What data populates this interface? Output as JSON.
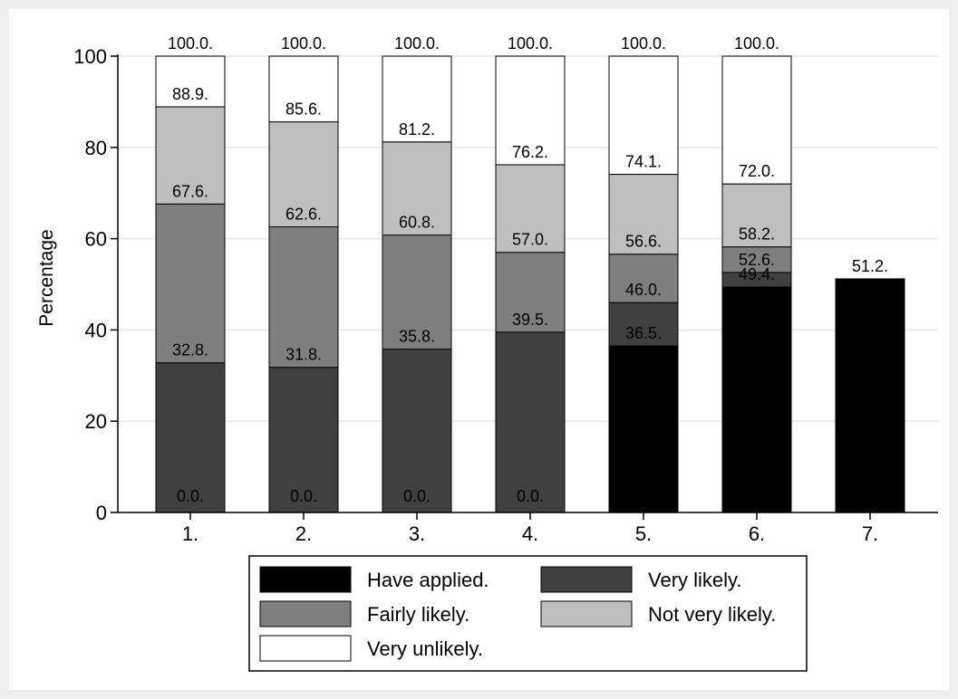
{
  "chart_data": {
    "type": "bar",
    "stacked": true,
    "cumulative_labels": true,
    "categories": [
      "1.",
      "2.",
      "3.",
      "4.",
      "5.",
      "6.",
      "7."
    ],
    "ylabel": "Percentage",
    "ylim": [
      0,
      100
    ],
    "yticks": [
      0,
      20,
      40,
      60,
      80,
      100
    ],
    "grid": true,
    "legend_position": "bottom",
    "series": [
      {
        "name": "Have applied",
        "color": "#000000",
        "values": [
          0.0,
          0.0,
          0.0,
          0.0,
          36.5,
          49.4,
          51.2
        ]
      },
      {
        "name": "Very likely",
        "color": "#404040",
        "values": [
          32.8,
          31.8,
          35.8,
          39.5,
          9.5,
          3.2,
          0
        ]
      },
      {
        "name": "Fairly likely",
        "color": "#7f7f7f",
        "values": [
          34.8,
          30.8,
          25.0,
          17.5,
          10.6,
          5.6,
          0
        ]
      },
      {
        "name": "Not very likely",
        "color": "#bfbfbf",
        "values": [
          21.3,
          23.0,
          20.4,
          19.2,
          17.5,
          13.8,
          0
        ]
      },
      {
        "name": "Very unlikely",
        "color": "#ffffff",
        "values": [
          11.1,
          14.4,
          18.8,
          23.8,
          25.9,
          28.0,
          0
        ]
      }
    ],
    "data_labels": [
      [
        "0.0.",
        "32.8.",
        "67.6.",
        "88.9.",
        "100.0."
      ],
      [
        "0.0.",
        "31.8.",
        "62.6.",
        "85.6.",
        "100.0."
      ],
      [
        "0.0.",
        "35.8.",
        "60.8.",
        "81.2.",
        "100.0."
      ],
      [
        "0.0.",
        "39.5.",
        "57.0.",
        "76.2.",
        "100.0."
      ],
      [
        "36.5.",
        "46.0.",
        "56.6.",
        "74.1.",
        "100.0."
      ],
      [
        "49.4.",
        "52.6.",
        "58.2.",
        "72.0.",
        "100.0."
      ],
      [
        "51.2."
      ]
    ]
  }
}
